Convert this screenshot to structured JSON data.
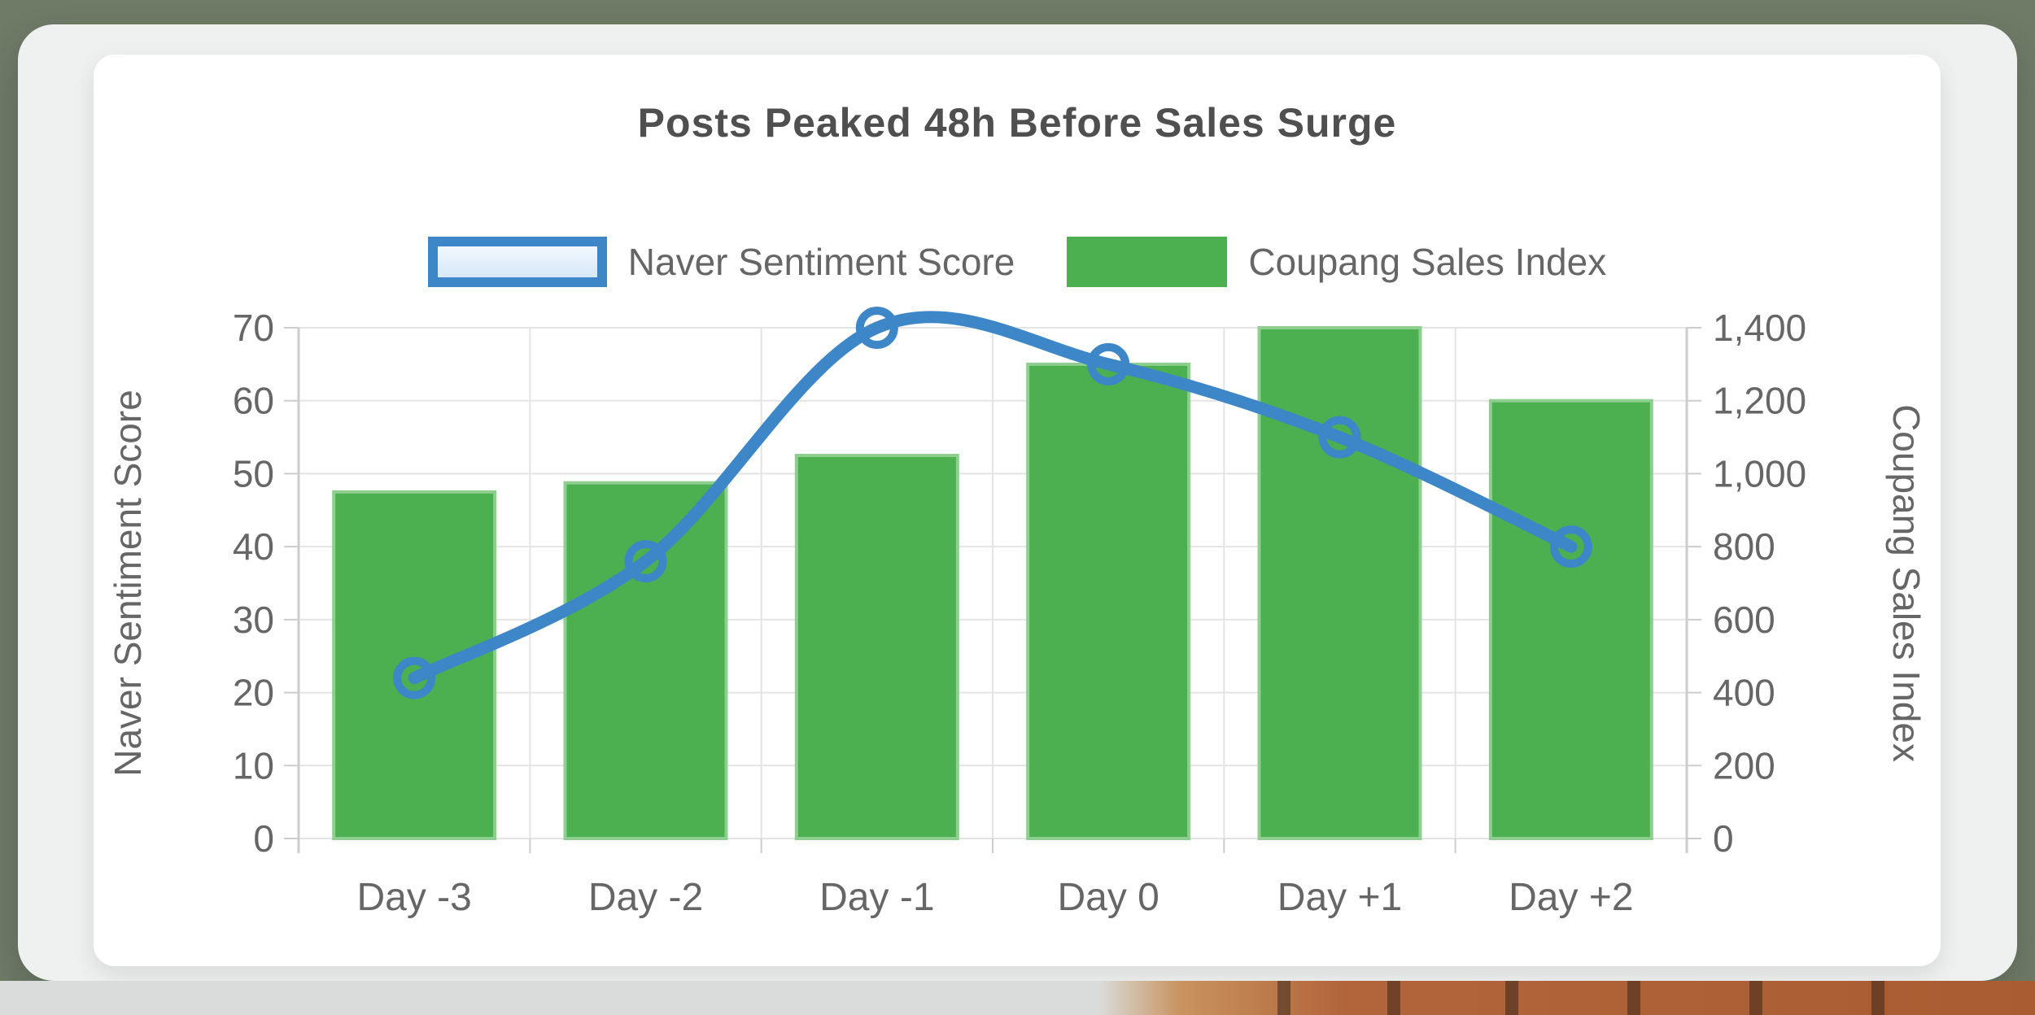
{
  "page": {
    "outer_background": "#6f7a67",
    "panel_background": "#eff1f1",
    "card_background": "#ffffff",
    "text_color": "#666666",
    "title_color": "#4f4f4f",
    "grid_color": "#e4e4e4",
    "axis_line_color": "#cdcdcd"
  },
  "chart_data": {
    "type": "combo",
    "title": "Posts Peaked 48h Before Sales Surge",
    "categories": [
      "Day -3",
      "Day -2",
      "Day -1",
      "Day 0",
      "Day +1",
      "Day +2"
    ],
    "series": [
      {
        "name": "Naver Sentiment Score",
        "type": "line",
        "axis": "left",
        "color": "#3d86c8",
        "marker": "hollow-circle",
        "values": [
          22,
          38,
          70,
          65,
          55,
          40
        ]
      },
      {
        "name": "Coupang Sales Index",
        "type": "bar",
        "axis": "right",
        "color": "#4caf50",
        "border_color": "#8ecf90",
        "values": [
          950,
          975,
          1050,
          1300,
          1400,
          1200
        ]
      }
    ],
    "left_axis": {
      "label": "Naver Sentiment Score",
      "min": 0,
      "max": 70,
      "tick_values": [
        0,
        10,
        20,
        30,
        40,
        50,
        60,
        70
      ],
      "tick_labels": [
        "0",
        "10",
        "20",
        "30",
        "40",
        "50",
        "60",
        "70"
      ]
    },
    "right_axis": {
      "label": "Coupang Sales Index",
      "min": 0,
      "max": 1400,
      "tick_values": [
        0,
        200,
        400,
        600,
        800,
        1000,
        1200,
        1400
      ],
      "tick_labels": [
        "0",
        "200",
        "400",
        "600",
        "800",
        "1,000",
        "1,200",
        "1,400"
      ]
    },
    "grid": true,
    "legend_position": "top"
  }
}
